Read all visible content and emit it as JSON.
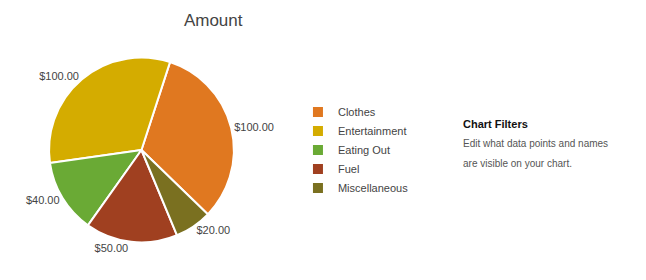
{
  "chart_data": {
    "type": "pie",
    "title": "Amount",
    "categories": [
      "Clothes",
      "Entertainment",
      "Eating Out",
      "Fuel",
      "Miscellaneous"
    ],
    "values": [
      100,
      100,
      40,
      50,
      20
    ],
    "value_labels": [
      "$100.00",
      "$100.00",
      "$40.00",
      "$50.00",
      "$20.00"
    ],
    "colors": [
      "#E07820",
      "#D4AC00",
      "#6AAA35",
      "#A04020",
      "#7A7020"
    ],
    "data_labels": true,
    "legend": "right",
    "annotations": [
      "Chart Filters",
      "Edit what data points and names",
      "are visible on your chart."
    ]
  }
}
